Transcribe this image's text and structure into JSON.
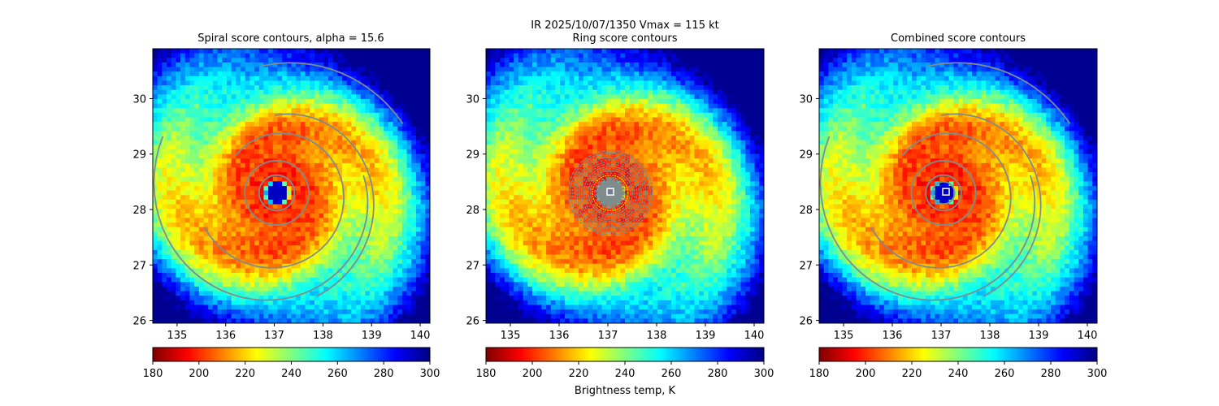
{
  "suptitle": "IR  2025/10/07/1350    Vmax = 115 kt",
  "colorbar_label": "Brightness temp, K",
  "chart_data": [
    {
      "type": "heatmap",
      "title": "Spiral score contours, alpha = 15.6",
      "xlim": [
        134.5,
        140.2
      ],
      "ylim": [
        25.95,
        30.9
      ],
      "xticks": [
        135,
        136,
        137,
        138,
        139,
        140
      ],
      "yticks": [
        26,
        27,
        28,
        29,
        30
      ],
      "center": [
        137.05,
        28.3
      ],
      "contours": "spiral",
      "marker": false
    },
    {
      "type": "heatmap",
      "title": "Ring score contours",
      "xlim": [
        134.5,
        140.2
      ],
      "ylim": [
        25.95,
        30.9
      ],
      "xticks": [
        135,
        136,
        137,
        138,
        139,
        140
      ],
      "yticks": [
        26,
        27,
        28,
        29,
        30
      ],
      "center": [
        137.05,
        28.3
      ],
      "contours": "ring",
      "marker": true,
      "marker_position": [
        137.05,
        28.32
      ]
    },
    {
      "type": "heatmap",
      "title": "Combined score contours",
      "xlim": [
        134.5,
        140.2
      ],
      "ylim": [
        25.95,
        30.9
      ],
      "xticks": [
        135,
        136,
        137,
        138,
        139,
        140
      ],
      "yticks": [
        26,
        27,
        28,
        29,
        30
      ],
      "center": [
        137.05,
        28.3
      ],
      "contours": "combined",
      "marker": true,
      "marker_position": [
        137.1,
        28.32
      ]
    }
  ],
  "colorbar": {
    "range": [
      180,
      300
    ],
    "ticks": [
      180,
      200,
      220,
      240,
      260,
      280,
      300
    ],
    "colormap": "jet_r",
    "colors": [
      "#7f0000",
      "#ff0000",
      "#ff7f00",
      "#ffff00",
      "#7fff7f",
      "#00ffff",
      "#007fff",
      "#0000ff",
      "#00007f"
    ]
  },
  "contour_color": "#7f8c8d"
}
